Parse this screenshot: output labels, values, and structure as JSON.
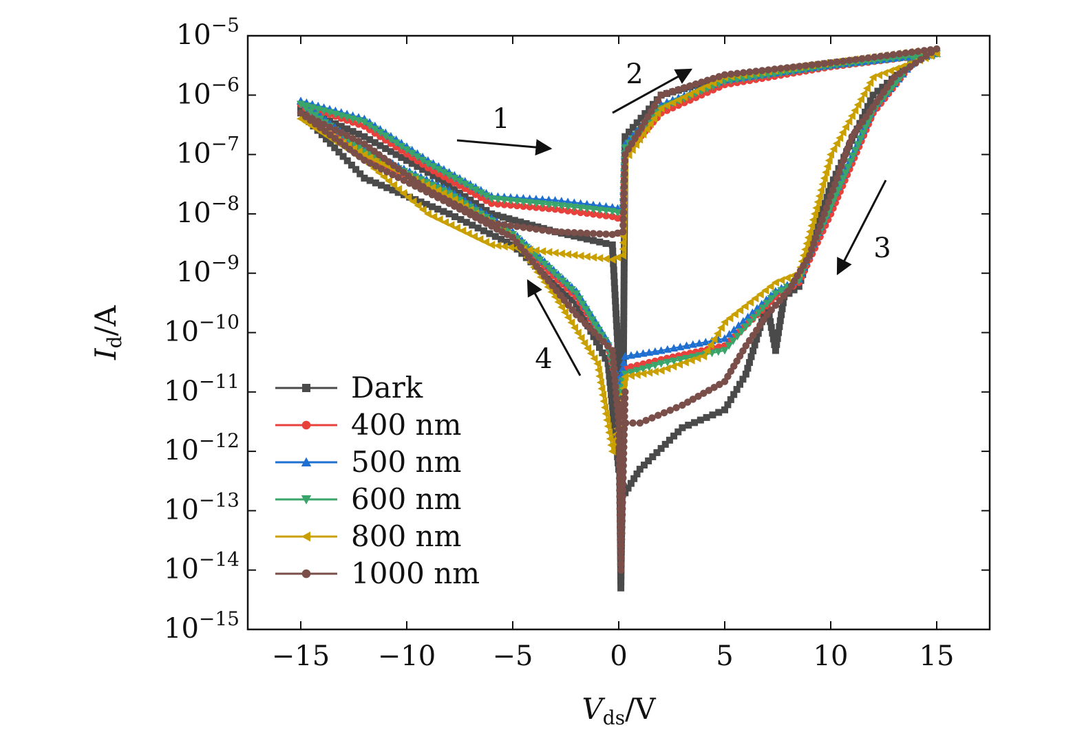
{
  "chart_data": {
    "type": "line",
    "x_axis": {
      "label_main": "V",
      "label_sub": "ds",
      "label_unit": "/V",
      "range": [
        -17.5,
        17.5
      ],
      "ticks": [
        -15,
        -10,
        -5,
        0,
        5,
        10,
        15
      ],
      "tick_labels": [
        "−15",
        "−10",
        "−5",
        "0",
        "5",
        "10",
        "15"
      ]
    },
    "y_axis": {
      "label_main": "I",
      "label_sub": "d",
      "label_unit": "/A",
      "scale": "log",
      "range_exp": [
        -15,
        -5
      ],
      "ticks_exp": [
        -5,
        -6,
        -7,
        -8,
        -9,
        -10,
        -11,
        -12,
        -13,
        -14,
        -15
      ],
      "tick_base": "10",
      "tick_exponents": [
        "−5",
        "−6",
        "−7",
        "−8",
        "−9",
        "−10",
        "−11",
        "−12",
        "−13",
        "−14",
        "−15"
      ]
    },
    "legend": {
      "placement": "bottom-left"
    },
    "annotations": [
      "1",
      "2",
      "3",
      "4"
    ],
    "series": [
      {
        "name": "Dark",
        "color": "#4a4a4a",
        "marker": "square",
        "points": [
          [
            -15,
            6e-07
          ],
          [
            -12,
            2e-07
          ],
          [
            -9,
            5e-08
          ],
          [
            -6,
            1e-08
          ],
          [
            -3,
            5e-09
          ],
          [
            -0.3,
            3e-09
          ],
          [
            0,
            3e-11
          ],
          [
            0.1,
            5e-15
          ],
          [
            0.2,
            3e-12
          ],
          [
            0.3,
            2e-07
          ],
          [
            2,
            1e-06
          ],
          [
            5,
            2e-06
          ],
          [
            10,
            3.5e-06
          ],
          [
            15,
            5e-06
          ],
          [
            14,
            4e-06
          ],
          [
            12,
            1e-06
          ],
          [
            10,
            3e-08
          ],
          [
            8.5,
            6e-10
          ],
          [
            7.8,
            4e-10
          ],
          [
            7.4,
            5e-11
          ],
          [
            7,
            3e-10
          ],
          [
            6,
            2e-11
          ],
          [
            5,
            5e-12
          ],
          [
            3,
            2.5e-12
          ],
          [
            1,
            5e-13
          ],
          [
            0.3,
            2e-13
          ],
          [
            0,
            5e-13
          ],
          [
            -0.5,
            3e-11
          ],
          [
            -2,
            3e-10
          ],
          [
            -5,
            3e-09
          ],
          [
            -8,
            1e-08
          ],
          [
            -12,
            4e-08
          ],
          [
            -15,
            5e-07
          ]
        ]
      },
      {
        "name": "400 nm",
        "color": "#e8413c",
        "marker": "circle",
        "points": [
          [
            -15,
            7e-07
          ],
          [
            -12,
            3e-07
          ],
          [
            -9,
            6e-08
          ],
          [
            -6,
            1.5e-08
          ],
          [
            -3,
            1.2e-08
          ],
          [
            -0.3,
            9e-09
          ],
          [
            0.2,
            8e-09
          ],
          [
            0.3,
            1e-07
          ],
          [
            2,
            5e-07
          ],
          [
            5,
            1.5e-06
          ],
          [
            10,
            3e-06
          ],
          [
            15,
            5e-06
          ],
          [
            14,
            4e-06
          ],
          [
            12,
            5e-07
          ],
          [
            10,
            1e-08
          ],
          [
            8.5,
            7e-10
          ],
          [
            7.4,
            4e-10
          ],
          [
            5,
            6e-11
          ],
          [
            2,
            3.5e-11
          ],
          [
            0.3,
            2.5e-11
          ],
          [
            0,
            1e-11
          ],
          [
            -0.5,
            6e-11
          ],
          [
            -2,
            4e-10
          ],
          [
            -5,
            4e-09
          ],
          [
            -8,
            2e-08
          ],
          [
            -12,
            1e-07
          ],
          [
            -15,
            7e-07
          ]
        ]
      },
      {
        "name": "500 nm",
        "color": "#1f6fd1",
        "marker": "triangle-up",
        "points": [
          [
            -15,
            8e-07
          ],
          [
            -12,
            4e-07
          ],
          [
            -9,
            8e-08
          ],
          [
            -6,
            2e-08
          ],
          [
            -3,
            1.7e-08
          ],
          [
            -0.3,
            1.3e-08
          ],
          [
            0.2,
            1.2e-08
          ],
          [
            0.3,
            1.5e-07
          ],
          [
            2,
            7e-07
          ],
          [
            5,
            1.8e-06
          ],
          [
            10,
            3.2e-06
          ],
          [
            15,
            5e-06
          ],
          [
            14,
            4e-06
          ],
          [
            12,
            6e-07
          ],
          [
            10,
            1.5e-08
          ],
          [
            8.5,
            8e-10
          ],
          [
            7.4,
            5e-10
          ],
          [
            5,
            8e-11
          ],
          [
            2,
            5e-11
          ],
          [
            0.3,
            4e-11
          ],
          [
            0,
            1.2e-11
          ],
          [
            -0.5,
            7e-11
          ],
          [
            -2,
            5e-10
          ],
          [
            -5,
            5e-09
          ],
          [
            -8,
            2.5e-08
          ],
          [
            -12,
            1.2e-07
          ],
          [
            -15,
            8e-07
          ]
        ]
      },
      {
        "name": "600 nm",
        "color": "#3aa56a",
        "marker": "triangle-down",
        "points": [
          [
            -15,
            7e-07
          ],
          [
            -12,
            3.5e-07
          ],
          [
            -9,
            7e-08
          ],
          [
            -6,
            1.8e-08
          ],
          [
            -3,
            1.4e-08
          ],
          [
            -0.3,
            1.1e-08
          ],
          [
            0.2,
            1e-08
          ],
          [
            0.3,
            1.3e-07
          ],
          [
            2,
            6e-07
          ],
          [
            5,
            1.7e-06
          ],
          [
            10,
            3.1e-06
          ],
          [
            15,
            5e-06
          ],
          [
            14,
            4e-06
          ],
          [
            12,
            5.5e-07
          ],
          [
            10,
            1.3e-08
          ],
          [
            8.5,
            7.5e-10
          ],
          [
            7.4,
            4.5e-10
          ],
          [
            5,
            5e-11
          ],
          [
            2,
            3e-11
          ],
          [
            0.3,
            2e-11
          ],
          [
            0,
            9e-12
          ],
          [
            -0.5,
            6e-11
          ],
          [
            -2,
            4.5e-10
          ],
          [
            -5,
            4.5e-09
          ],
          [
            -8,
            2.2e-08
          ],
          [
            -12,
            1.1e-07
          ],
          [
            -15,
            7e-07
          ]
        ]
      },
      {
        "name": "800 nm",
        "color": "#c9a000",
        "marker": "triangle-left",
        "points": [
          [
            -15,
            4e-07
          ],
          [
            -12,
            8e-08
          ],
          [
            -9,
            1e-08
          ],
          [
            -6,
            3e-09
          ],
          [
            -3,
            2.2e-09
          ],
          [
            -0.3,
            1.7e-09
          ],
          [
            0.2,
            2e-09
          ],
          [
            0.3,
            8e-08
          ],
          [
            2,
            6e-07
          ],
          [
            5,
            2e-06
          ],
          [
            10,
            3.5e-06
          ],
          [
            14,
            5.5e-06
          ],
          [
            15,
            5e-06
          ],
          [
            12,
            2e-06
          ],
          [
            10,
            1e-07
          ],
          [
            8.5,
            1e-09
          ],
          [
            7.4,
            7e-10
          ],
          [
            5,
            1.5e-10
          ],
          [
            4,
            4e-11
          ],
          [
            2,
            2.3e-11
          ],
          [
            0.3,
            1.8e-11
          ],
          [
            0,
            3e-12
          ],
          [
            -0.3,
            1e-12
          ],
          [
            -1,
            3e-11
          ],
          [
            -3,
            4e-10
          ],
          [
            -5,
            4e-09
          ],
          [
            -8,
            2e-08
          ],
          [
            -12,
            1e-07
          ],
          [
            -15,
            4e-07
          ]
        ]
      },
      {
        "name": "1000 nm",
        "color": "#7a4f4a",
        "marker": "circle",
        "points": [
          [
            -15,
            5e-07
          ],
          [
            -12,
            1.5e-07
          ],
          [
            -9,
            2.5e-08
          ],
          [
            -6,
            7e-09
          ],
          [
            -3,
            5e-09
          ],
          [
            -0.3,
            4.5e-09
          ],
          [
            0.2,
            5e-09
          ],
          [
            0.3,
            1e-07
          ],
          [
            2,
            1e-06
          ],
          [
            5,
            2.2e-06
          ],
          [
            10,
            3.5e-06
          ],
          [
            15,
            6e-06
          ],
          [
            13,
            2e-06
          ],
          [
            11,
            2e-07
          ],
          [
            9,
            2e-09
          ],
          [
            8,
            5e-10
          ],
          [
            7,
            2e-10
          ],
          [
            6,
            6e-11
          ],
          [
            5,
            1.5e-11
          ],
          [
            3,
            6e-12
          ],
          [
            1,
            3e-12
          ],
          [
            0,
            3e-12
          ],
          [
            0.1,
            1e-14
          ],
          [
            0.3,
            1e-11
          ],
          [
            0,
            3e-12
          ],
          [
            -0.3,
            5e-11
          ],
          [
            -2,
            2e-10
          ],
          [
            -5,
            4e-09
          ],
          [
            -8,
            1.5e-08
          ],
          [
            -12,
            8e-08
          ],
          [
            -15,
            5e-07
          ]
        ]
      }
    ]
  }
}
